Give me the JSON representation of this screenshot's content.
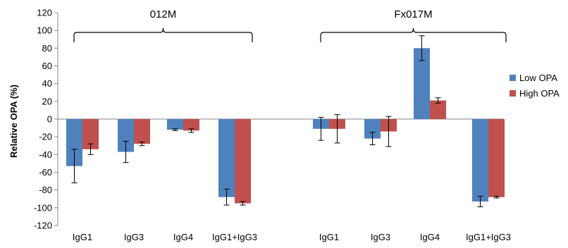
{
  "chart_data": {
    "type": "bar",
    "ylabel": "Relative OPA (%)",
    "ylim": [
      -120,
      120
    ],
    "yticks": [
      -120,
      -100,
      -80,
      -60,
      -40,
      -20,
      0,
      20,
      40,
      60,
      80,
      100,
      120
    ],
    "grid": false,
    "legend_position": "right",
    "groups": [
      {
        "name": "012M",
        "categories": [
          "IgG1",
          "IgG3",
          "IgG4",
          "IgG1+IgG3"
        ],
        "series": [
          {
            "name": "Low OPA",
            "color": "#4F81BD",
            "values": [
              -53,
              -37,
              -12,
              -88
            ],
            "errors": [
              19,
              12,
              1,
              9
            ]
          },
          {
            "name": "High OPA",
            "color": "#C0504D",
            "values": [
              -34,
              -28,
              -13,
              -95
            ],
            "errors": [
              6,
              2,
              2,
              2
            ]
          }
        ]
      },
      {
        "name": "Fx017M",
        "categories": [
          "IgG1",
          "IgG3",
          "IgG4",
          "IgG1+IgG3"
        ],
        "series": [
          {
            "name": "Low OPA",
            "color": "#4F81BD",
            "values": [
              -11,
              -22,
              80,
              -93
            ],
            "errors": [
              13,
              7,
              14,
              6
            ]
          },
          {
            "name": "High OPA",
            "color": "#C0504D",
            "values": [
              -11,
              -14,
              21,
              -88
            ],
            "errors": [
              16,
              17,
              3,
              1
            ]
          }
        ]
      }
    ]
  }
}
